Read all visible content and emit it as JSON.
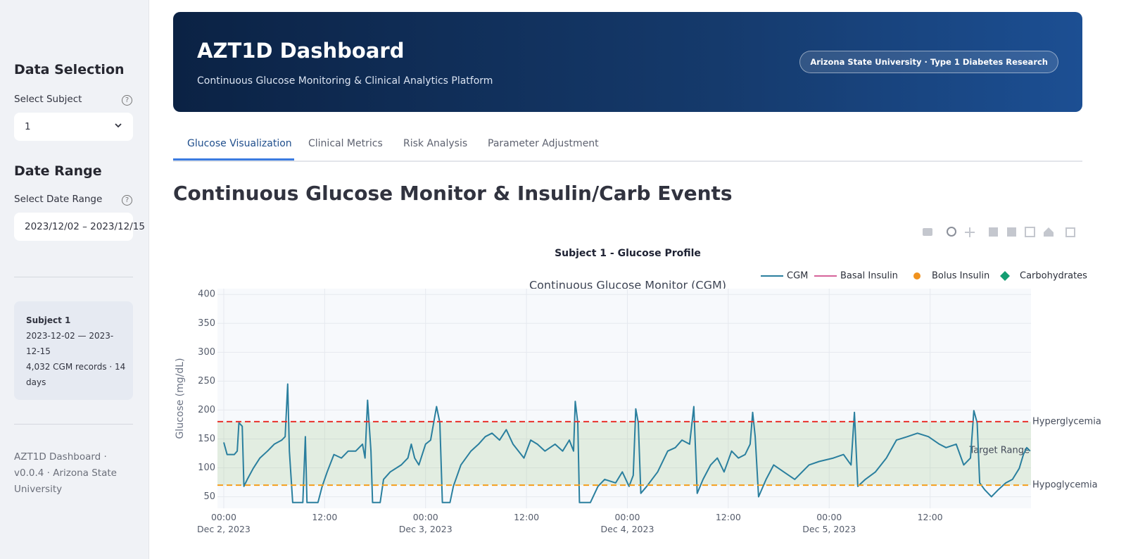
{
  "sidebar": {
    "section1": "Data Selection",
    "subject_label": "Select Subject",
    "subject_value": "1",
    "section2": "Date Range",
    "date_label": "Select Date Range",
    "date_value": "2023/12/02 – 2023/12/15",
    "card": {
      "title": "Subject 1",
      "range": "2023-12-02 — 2023-12-15",
      "records": "4,032 CGM records · 14 days"
    },
    "footer": "AZT1D Dashboard · v0.0.4 · Arizona State University"
  },
  "header": {
    "title": "AZT1D Dashboard",
    "subtitle": "Continuous Glucose Monitoring & Clinical Analytics Platform",
    "badge": "Arizona State University · Type 1 Diabetes Research"
  },
  "tabs": [
    "Glucose Visualization",
    "Clinical Metrics",
    "Risk Analysis",
    "Parameter Adjustment"
  ],
  "heading": "Continuous Glucose Monitor & Insulin/Carb Events",
  "chart_data": {
    "type": "line",
    "title": "Subject 1 - Glucose Profile",
    "subtitle": "Continuous Glucose Monitor (CGM)",
    "y_label": "Glucose (mg/dL)",
    "xlim": [
      -0.75,
      96
    ],
    "ylim": [
      30,
      410
    ],
    "yticks": [
      50,
      100,
      150,
      200,
      250,
      300,
      350,
      400
    ],
    "xticks": [
      {
        "value": 0,
        "label": "00:00\nDec 2, 2023"
      },
      {
        "value": 12,
        "label": "12:00"
      },
      {
        "value": 24,
        "label": "00:00\nDec 3, 2023"
      },
      {
        "value": 36,
        "label": "12:00"
      },
      {
        "value": 48,
        "label": "00:00\nDec 4, 2023"
      },
      {
        "value": 60,
        "label": "12:00"
      },
      {
        "value": 72,
        "label": "00:00\nDec 5, 2023"
      },
      {
        "value": 84,
        "label": "12:00"
      }
    ],
    "grid": true,
    "legend_position": "top-right",
    "legend": [
      {
        "name": "CGM",
        "color": "#2a7f9e",
        "symbol": "line"
      },
      {
        "name": "Basal Insulin",
        "color": "#d6639a",
        "symbol": "line"
      },
      {
        "name": "Bolus Insulin",
        "color": "#f0921e",
        "symbol": "circle"
      },
      {
        "name": "Carbohydrates",
        "color": "#139e72",
        "symbol": "diamond"
      }
    ],
    "target_range": {
      "label": "Target Range",
      "range": [
        70,
        180
      ],
      "color": "#8fbf7a"
    },
    "reference_lines": [
      {
        "value": 180,
        "label": "Hyperglycemia",
        "color": "#e8302a"
      },
      {
        "value": 70,
        "label": "Hypoglycemia",
        "color": "#f59e1b"
      }
    ],
    "series": [
      {
        "name": "CGM",
        "color": "#2a7f9e",
        "x": [
          0,
          0.4,
          1.25,
          1.6,
          1.8,
          2.2,
          2.4,
          2.8,
          3.5,
          4.3,
          5.2,
          6,
          6.9,
          7.3,
          7.6,
          7.8,
          8.2,
          9.4,
          9.7,
          9.9,
          11.2,
          11.7,
          12.3,
          13.1,
          14,
          14.8,
          15.7,
          16.5,
          16.8,
          17.1,
          17.5,
          17.7,
          18.6,
          19,
          19.8,
          21.1,
          21.9,
          22.3,
          22.7,
          23.2,
          24,
          24.6,
          25.3,
          25.7,
          26,
          26.9,
          27.3,
          28.2,
          29.4,
          30.3,
          31.1,
          31.9,
          32.8,
          33.6,
          34.4,
          35.7,
          36.5,
          37.3,
          38.2,
          39.4,
          40.3,
          41.1,
          41.6,
          41.8,
          42.1,
          42.3,
          43.6,
          44.5,
          45.3,
          46.6,
          47.4,
          48.2,
          48.7,
          49,
          49.3,
          49.6,
          50.3,
          51.6,
          52.8,
          53.7,
          54.5,
          55.4,
          55.9,
          56.3,
          57,
          57.9,
          58.7,
          59.5,
          60.4,
          61.2,
          62,
          62.6,
          62.9,
          63.2,
          63.6,
          64.5,
          65.4,
          66.6,
          67.9,
          69.6,
          70.8,
          72.5,
          73.7,
          74.6,
          75,
          75.4,
          76.3,
          77.5,
          78.8,
          80,
          81.3,
          82.5,
          83.8,
          85.1,
          85.9,
          87.1,
          88,
          88.8,
          89.2,
          89.6,
          89.9,
          90.5,
          91.3,
          92.1,
          93,
          93.8,
          94.6,
          95.1,
          95.5,
          95.9
        ],
        "values": [
          144,
          123,
          123,
          129,
          178,
          172,
          68,
          80,
          99,
          117,
          129,
          141,
          148,
          154,
          245,
          129,
          40,
          40,
          154,
          40,
          40,
          68,
          93,
          123,
          117,
          129,
          129,
          141,
          117,
          217,
          129,
          40,
          40,
          80,
          93,
          105,
          117,
          141,
          117,
          105,
          141,
          148,
          206,
          178,
          40,
          40,
          68,
          105,
          129,
          141,
          154,
          160,
          148,
          166,
          141,
          117,
          148,
          141,
          129,
          141,
          129,
          148,
          129,
          215,
          178,
          40,
          40,
          68,
          80,
          74,
          93,
          68,
          87,
          202,
          178,
          56,
          68,
          93,
          129,
          135,
          148,
          141,
          206,
          56,
          80,
          105,
          117,
          93,
          129,
          117,
          123,
          141,
          196,
          154,
          50,
          80,
          105,
          93,
          80,
          105,
          111,
          117,
          123,
          105,
          196,
          68,
          80,
          93,
          117,
          148,
          154,
          160,
          154,
          141,
          135,
          141,
          105,
          117,
          199,
          178,
          74,
          62,
          50,
          62,
          74,
          80,
          99,
          123,
          135,
          129
        ]
      }
    ]
  }
}
